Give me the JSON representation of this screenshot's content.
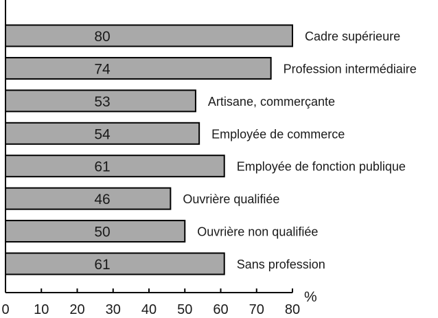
{
  "chart_data": {
    "type": "bar",
    "orientation": "horizontal",
    "categories": [
      "Cadre supérieure",
      "Profession intermédiaire",
      "Artisane, commerçante",
      "Employée de commerce",
      "Employée de fonction publique",
      "Ouvrière qualifiée",
      "Ouvrière non qualifiée",
      "Sans profession"
    ],
    "values": [
      80,
      74,
      53,
      54,
      61,
      46,
      50,
      61
    ],
    "value_labels": [
      "80",
      "74",
      "53",
      "54",
      "61",
      "46",
      "50",
      "61"
    ],
    "xlim": [
      0,
      80
    ],
    "xticks": [
      "0",
      "10",
      "20",
      "30",
      "40",
      "50",
      "60",
      "70",
      "80"
    ],
    "unit_label": "%",
    "grid": false,
    "legend": "none",
    "colors": {
      "bar_fill": "#a9a9a9",
      "bar_stroke": "#000000"
    }
  }
}
